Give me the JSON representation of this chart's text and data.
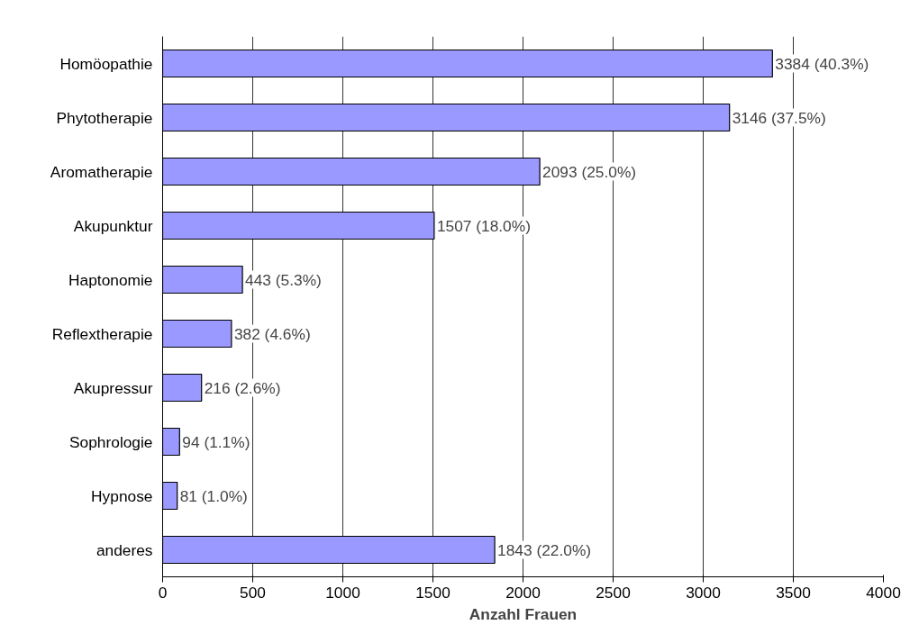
{
  "chart_data": {
    "type": "bar",
    "orientation": "horizontal",
    "xlabel": "Anzahl Frauen",
    "categories": [
      "Homöopathie",
      "Phytotherapie",
      "Aromatherapie",
      "Akupunktur",
      "Haptonomie",
      "Reflextherapie",
      "Akupressur",
      "Sophrologie",
      "Hypnose",
      "anderes"
    ],
    "values": [
      3384,
      3146,
      2093,
      1507,
      443,
      382,
      216,
      94,
      81,
      1843
    ],
    "value_labels": [
      "3384 (40.3%)",
      "3146 (37.5%)",
      "2093 (25.0%)",
      "1507 (18.0%)",
      "443 (5.3%)",
      "382 (4.6%)",
      "216 (2.6%)",
      "94 (1.1%)",
      "81 (1.0%)",
      "1843 (22.0%)"
    ],
    "color": "#9999ff",
    "xlim": [
      0,
      4000
    ],
    "xticks": [
      0,
      500,
      1000,
      1500,
      2000,
      2500,
      3000,
      3500,
      4000
    ],
    "grid": "x"
  }
}
